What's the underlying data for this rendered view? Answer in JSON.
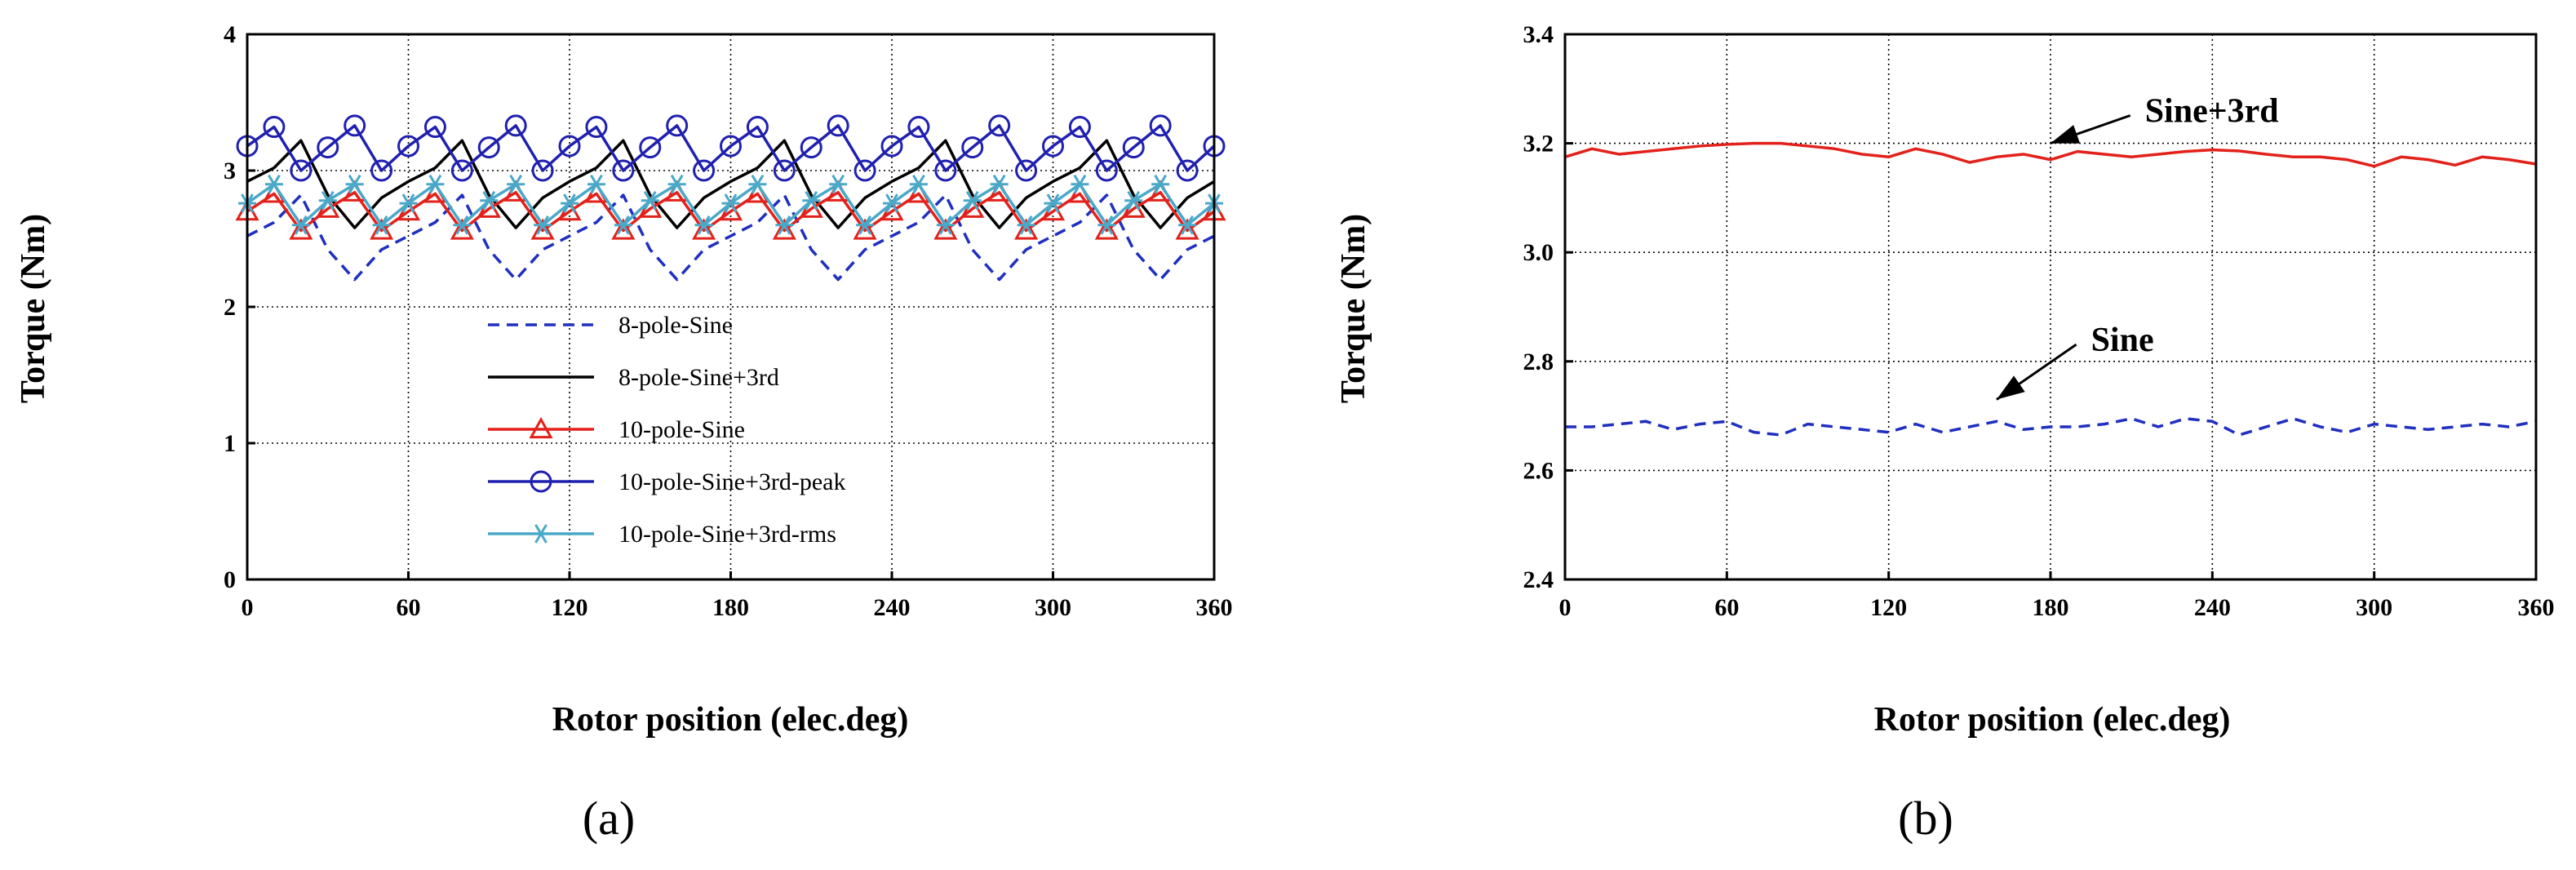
{
  "chart_data": [
    {
      "panel": "(a)",
      "type": "line",
      "xlabel": "Rotor position (elec.deg)",
      "ylabel": "Torque (Nm)",
      "xlim": [
        0,
        360
      ],
      "ylim": [
        0,
        4
      ],
      "xticks": [
        0,
        60,
        120,
        180,
        240,
        300,
        360
      ],
      "yticks": [
        0,
        1,
        2,
        3,
        4
      ],
      "grid": true,
      "legend_position": "lower-center",
      "colors": {
        "axis": "#000000",
        "grid": "#000000"
      },
      "series": [
        {
          "name": "8-pole-Sine",
          "color": "#1f2fbf",
          "style": "dashed",
          "marker": "none",
          "x": [
            0,
            10,
            20,
            30,
            40,
            50,
            60,
            70,
            80,
            90,
            100,
            110,
            120,
            130,
            140,
            150,
            160,
            170,
            180,
            190,
            200,
            210,
            220,
            230,
            240,
            250,
            260,
            270,
            280,
            290,
            300,
            310,
            320,
            330,
            340,
            350,
            360
          ],
          "values": [
            2.52,
            2.62,
            2.82,
            2.42,
            2.2,
            2.42,
            2.52,
            2.62,
            2.82,
            2.42,
            2.2,
            2.42,
            2.52,
            2.62,
            2.82,
            2.42,
            2.2,
            2.42,
            2.52,
            2.62,
            2.82,
            2.42,
            2.2,
            2.42,
            2.52,
            2.62,
            2.82,
            2.42,
            2.2,
            2.42,
            2.52,
            2.62,
            2.82,
            2.42,
            2.2,
            2.42,
            2.52
          ]
        },
        {
          "name": "8-pole-Sine+3rd",
          "color": "#000000",
          "style": "solid",
          "marker": "none",
          "x": [
            0,
            10,
            20,
            30,
            40,
            50,
            60,
            70,
            80,
            90,
            100,
            110,
            120,
            130,
            140,
            150,
            160,
            170,
            180,
            190,
            200,
            210,
            220,
            230,
            240,
            250,
            260,
            270,
            280,
            290,
            300,
            310,
            320,
            330,
            340,
            350,
            360
          ],
          "values": [
            2.92,
            3.02,
            3.22,
            2.82,
            2.58,
            2.8,
            2.92,
            3.02,
            3.22,
            2.82,
            2.58,
            2.8,
            2.92,
            3.02,
            3.22,
            2.82,
            2.58,
            2.8,
            2.92,
            3.02,
            3.22,
            2.82,
            2.58,
            2.8,
            2.92,
            3.02,
            3.22,
            2.82,
            2.58,
            2.8,
            2.92,
            3.02,
            3.22,
            2.82,
            2.58,
            2.8,
            2.92
          ]
        },
        {
          "name": "10-pole-Sine",
          "color": "#e3211b",
          "style": "solid",
          "marker": "triangle",
          "x": [
            0,
            10,
            20,
            30,
            40,
            50,
            60,
            70,
            80,
            90,
            100,
            110,
            120,
            130,
            140,
            150,
            160,
            170,
            180,
            190,
            200,
            210,
            220,
            230,
            240,
            250,
            260,
            270,
            280,
            290,
            300,
            310,
            320,
            330,
            340,
            350,
            360
          ],
          "values": [
            2.7,
            2.83,
            2.56,
            2.72,
            2.84,
            2.56,
            2.7,
            2.83,
            2.56,
            2.72,
            2.84,
            2.56,
            2.7,
            2.83,
            2.56,
            2.72,
            2.84,
            2.56,
            2.7,
            2.83,
            2.56,
            2.72,
            2.84,
            2.56,
            2.7,
            2.83,
            2.56,
            2.72,
            2.84,
            2.56,
            2.7,
            2.83,
            2.56,
            2.72,
            2.84,
            2.56,
            2.7
          ]
        },
        {
          "name": "10-pole-Sine+3rd-peak",
          "color": "#2020b0",
          "style": "solid",
          "marker": "circle",
          "x": [
            0,
            10,
            20,
            30,
            40,
            50,
            60,
            70,
            80,
            90,
            100,
            110,
            120,
            130,
            140,
            150,
            160,
            170,
            180,
            190,
            200,
            210,
            220,
            230,
            240,
            250,
            260,
            270,
            280,
            290,
            300,
            310,
            320,
            330,
            340,
            350,
            360
          ],
          "values": [
            3.18,
            3.32,
            3.0,
            3.17,
            3.33,
            3.0,
            3.18,
            3.32,
            3.0,
            3.17,
            3.33,
            3.0,
            3.18,
            3.32,
            3.0,
            3.17,
            3.33,
            3.0,
            3.18,
            3.32,
            3.0,
            3.17,
            3.33,
            3.0,
            3.18,
            3.32,
            3.0,
            3.17,
            3.33,
            3.0,
            3.18,
            3.32,
            3.0,
            3.17,
            3.33,
            3.0,
            3.18
          ]
        },
        {
          "name": "10-pole-Sine+3rd-rms",
          "color": "#4aa8c8",
          "style": "solid",
          "marker": "star",
          "x": [
            0,
            10,
            20,
            30,
            40,
            50,
            60,
            70,
            80,
            90,
            100,
            110,
            120,
            130,
            140,
            150,
            160,
            170,
            180,
            190,
            200,
            210,
            220,
            230,
            240,
            250,
            260,
            270,
            280,
            290,
            300,
            310,
            320,
            330,
            340,
            350,
            360
          ],
          "values": [
            2.76,
            2.9,
            2.6,
            2.78,
            2.9,
            2.6,
            2.76,
            2.9,
            2.6,
            2.78,
            2.9,
            2.6,
            2.76,
            2.9,
            2.6,
            2.78,
            2.9,
            2.6,
            2.76,
            2.9,
            2.6,
            2.78,
            2.9,
            2.6,
            2.76,
            2.9,
            2.6,
            2.78,
            2.9,
            2.6,
            2.76,
            2.9,
            2.6,
            2.78,
            2.9,
            2.6,
            2.76
          ]
        }
      ]
    },
    {
      "panel": "(b)",
      "type": "line",
      "xlabel": "Rotor position (elec.deg)",
      "ylabel": "Torque (Nm)",
      "xlim": [
        0,
        360
      ],
      "ylim": [
        2.4,
        3.4
      ],
      "xticks": [
        0,
        60,
        120,
        180,
        240,
        300,
        360
      ],
      "yticks": [
        "2.4",
        "2.6",
        "2.8",
        "3.0",
        "3.2",
        "3.4"
      ],
      "grid": true,
      "annotations": [
        {
          "text": "Sine+3rd",
          "arrow_to": [
            180,
            3.2
          ],
          "text_at": [
            215,
            3.26
          ]
        },
        {
          "text": "Sine",
          "arrow_to": [
            160,
            2.73
          ],
          "text_at": [
            195,
            2.84
          ]
        }
      ],
      "series": [
        {
          "name": "Sine+3rd",
          "color": "#e3211b",
          "style": "solid",
          "x": [
            0,
            10,
            20,
            30,
            40,
            50,
            60,
            70,
            80,
            90,
            100,
            110,
            120,
            130,
            140,
            150,
            160,
            170,
            180,
            190,
            200,
            210,
            220,
            230,
            240,
            250,
            260,
            270,
            280,
            290,
            300,
            310,
            320,
            330,
            340,
            350,
            360
          ],
          "values": [
            3.175,
            3.19,
            3.18,
            3.185,
            3.19,
            3.195,
            3.198,
            3.2,
            3.2,
            3.195,
            3.19,
            3.18,
            3.175,
            3.19,
            3.18,
            3.165,
            3.175,
            3.18,
            3.17,
            3.185,
            3.18,
            3.175,
            3.18,
            3.185,
            3.188,
            3.186,
            3.18,
            3.175,
            3.175,
            3.17,
            3.158,
            3.175,
            3.17,
            3.16,
            3.175,
            3.17,
            3.162
          ]
        },
        {
          "name": "Sine",
          "color": "#1f2fbf",
          "style": "dashed",
          "x": [
            0,
            10,
            20,
            30,
            40,
            50,
            60,
            70,
            80,
            90,
            100,
            110,
            120,
            130,
            140,
            150,
            160,
            170,
            180,
            190,
            200,
            210,
            220,
            230,
            240,
            250,
            260,
            270,
            280,
            290,
            300,
            310,
            320,
            330,
            340,
            350,
            360
          ],
          "values": [
            2.68,
            2.68,
            2.685,
            2.69,
            2.675,
            2.685,
            2.69,
            2.67,
            2.665,
            2.685,
            2.68,
            2.675,
            2.67,
            2.685,
            2.67,
            2.68,
            2.69,
            2.675,
            2.68,
            2.68,
            2.685,
            2.695,
            2.68,
            2.695,
            2.69,
            2.665,
            2.68,
            2.695,
            2.68,
            2.67,
            2.685,
            2.68,
            2.675,
            2.68,
            2.685,
            2.68,
            2.69
          ]
        }
      ]
    }
  ],
  "panel_labels": {
    "a": "(a)",
    "b": "(b)"
  }
}
